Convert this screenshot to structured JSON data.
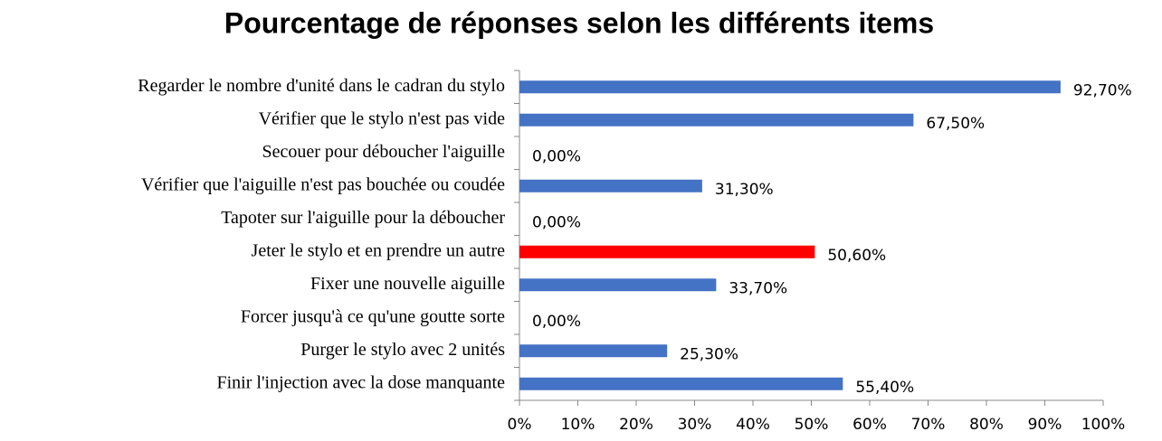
{
  "chart_data": {
    "type": "barh",
    "title": "Pourcentage de réponses selon les différents items",
    "categories": [
      "Regarder le nombre d'unité dans le cadran du stylo",
      "Vérifier que le stylo n'est pas vide",
      "Secouer pour déboucher l'aiguille",
      "Vérifier que l'aiguille n'est pas bouchée ou coudée",
      "Tapoter sur l'aiguille pour la déboucher",
      "Jeter le stylo et en prendre un autre",
      "Fixer une nouvelle aiguille",
      "Forcer jusqu'à ce qu'une goutte sorte",
      "Purger le stylo avec 2 unités",
      "Finir l'injection avec la dose manquante"
    ],
    "values": [
      92.7,
      67.5,
      0,
      31.3,
      0,
      50.6,
      33.7,
      0,
      25.3,
      55.4
    ],
    "value_labels": [
      "92,70%",
      "67,50%",
      "0,00%",
      "31,30%",
      "0,00%",
      "50,60%",
      "33,70%",
      "0,00%",
      "25,30%",
      "55,40%"
    ],
    "colors": [
      "#4472c4",
      "#4472c4",
      "#4472c4",
      "#4472c4",
      "#4472c4",
      "#ff0000",
      "#4472c4",
      "#4472c4",
      "#4472c4",
      "#4472c4"
    ],
    "xlim": [
      0,
      100
    ],
    "xticks": [
      {
        "value": 0,
        "label": "0%"
      },
      {
        "value": 10,
        "label": "10%"
      },
      {
        "value": 20,
        "label": "20%"
      },
      {
        "value": 30,
        "label": "30%"
      },
      {
        "value": 40,
        "label": "40%"
      },
      {
        "value": 50,
        "label": "50%"
      },
      {
        "value": 60,
        "label": "60%"
      },
      {
        "value": 70,
        "label": "70%"
      },
      {
        "value": 80,
        "label": "80%"
      },
      {
        "value": 90,
        "label": "90%"
      },
      {
        "value": 100,
        "label": "100%"
      }
    ],
    "grid": false
  }
}
